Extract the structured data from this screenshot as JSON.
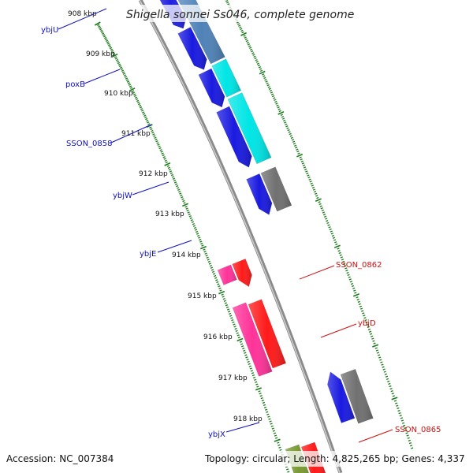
{
  "title": "Shigella sonnei Ss046, complete genome",
  "footer": {
    "accession": "Accession: NC_007384",
    "summary": "Topology: circular; Length: 4,825,265 bp; Genes: 4,337"
  },
  "ticks": [
    "908 kbp",
    "909 kbp",
    "910 kbp",
    "911 kbp",
    "912 kbp",
    "913 kbp",
    "914 kbp",
    "915 kbp",
    "916 kbp",
    "917 kbp",
    "918 kbp"
  ],
  "colors": {
    "backbone": "#8a8a8a",
    "tick_inner": "#1a7a1a",
    "tick_outer": "#1a7a1a",
    "label_blue": "#1010c0",
    "label_red": "#d01010"
  },
  "features": [
    {
      "id": "f1",
      "label": "",
      "color": "#4f82b8",
      "lane": "inner"
    },
    {
      "id": "f2",
      "label": "ybjU",
      "color": "#2020e0",
      "lane": "outer"
    },
    {
      "id": "f3",
      "label": "poxB",
      "color": "#4f82b8",
      "lane": "inner"
    },
    {
      "id": "f4",
      "label": "",
      "color": "#1a1ae0",
      "lane": "outer"
    },
    {
      "id": "f5",
      "label": "SSON_0858",
      "color": "#00e5e5",
      "lane": "inner"
    },
    {
      "id": "f6",
      "label": "",
      "color": "#1a1ae0",
      "lane": "outer"
    },
    {
      "id": "f7",
      "label": "ybjW",
      "color": "#00e5e5",
      "lane": "inner"
    },
    {
      "id": "f8",
      "label": "",
      "color": "#1a1ae0",
      "lane": "outer"
    },
    {
      "id": "f9",
      "label": "ybjE",
      "color": "#707070",
      "lane": "inner"
    },
    {
      "id": "f10",
      "label": "",
      "color": "#1a1ae0",
      "lane": "outer"
    },
    {
      "id": "f11",
      "label": "",
      "color": "#ff1a1a",
      "lane": "outer"
    },
    {
      "id": "f12",
      "label": "SSON_0862",
      "color": "#ff3399",
      "lane": "outer2"
    },
    {
      "id": "f13",
      "label": "",
      "color": "#ff1a1a",
      "lane": "outer"
    },
    {
      "id": "f14",
      "label": "ybjD",
      "color": "#ff3399",
      "lane": "outer2"
    },
    {
      "id": "f15",
      "label": "",
      "color": "#707070",
      "lane": "inner"
    },
    {
      "id": "f16",
      "label": "ybjX",
      "color": "#1a1ae0",
      "lane": "outer"
    },
    {
      "id": "f17",
      "label": "",
      "color": "#ff1a1a",
      "lane": "outer"
    },
    {
      "id": "f18",
      "label": "SSON_0865",
      "color": "#7a9a33",
      "lane": "outer2"
    },
    {
      "id": "f19",
      "label": "",
      "color": "#00e5cc",
      "lane": "outer3"
    }
  ]
}
